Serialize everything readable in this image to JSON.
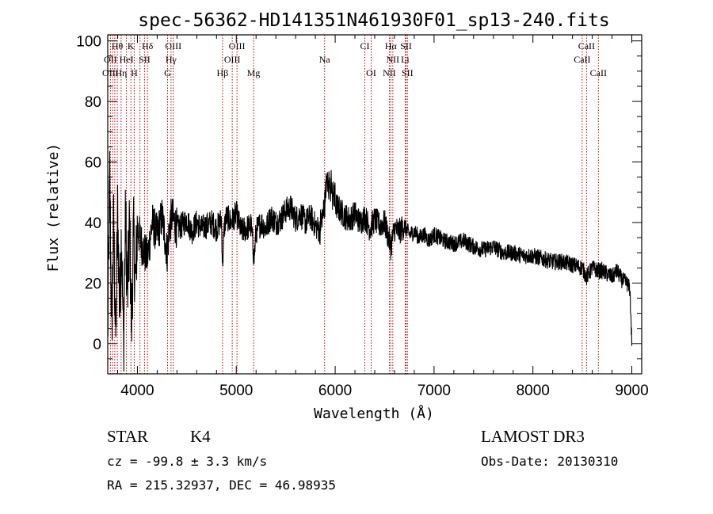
{
  "chart_data": {
    "type": "line",
    "title": "spec-56362-HD141351N461930F01_sp13-240.fits",
    "xlabel": "Wavelength (Å)",
    "ylabel": "Flux (relative)",
    "xlim": [
      3700,
      9100
    ],
    "ylim": [
      -10,
      102
    ],
    "x_ticks": [
      4000,
      5000,
      6000,
      7000,
      8000,
      9000
    ],
    "y_ticks": [
      0,
      20,
      40,
      60,
      80,
      100
    ],
    "series": [
      {
        "name": "flux",
        "x": [
          3700,
          3720,
          3740,
          3760,
          3780,
          3800,
          3820,
          3840,
          3860,
          3880,
          3900,
          3920,
          3940,
          3960,
          3980,
          4000,
          4050,
          4100,
          4150,
          4200,
          4250,
          4300,
          4330,
          4350,
          4400,
          4450,
          4500,
          4550,
          4600,
          4650,
          4700,
          4750,
          4800,
          4850,
          4861,
          4880,
          4900,
          4950,
          5000,
          5050,
          5100,
          5150,
          5180,
          5200,
          5250,
          5300,
          5350,
          5400,
          5450,
          5500,
          5550,
          5600,
          5650,
          5700,
          5750,
          5800,
          5850,
          5890,
          5920,
          5950,
          6000,
          6050,
          6100,
          6150,
          6200,
          6250,
          6300,
          6350,
          6400,
          6450,
          6500,
          6563,
          6600,
          6650,
          6700,
          6750,
          6800,
          6850,
          6900,
          6950,
          7000,
          7100,
          7200,
          7300,
          7400,
          7500,
          7600,
          7700,
          7800,
          7900,
          8000,
          8100,
          8200,
          8300,
          8400,
          8500,
          8542,
          8600,
          8662,
          8700,
          8800,
          8850,
          8900,
          8950,
          8980,
          9000
        ],
        "y": [
          2,
          55,
          5,
          40,
          0,
          45,
          10,
          38,
          -2,
          42,
          15,
          40,
          5,
          36,
          20,
          38,
          32,
          28,
          40,
          36,
          42,
          30,
          40,
          42,
          38,
          39,
          41,
          37,
          40,
          38,
          39,
          40,
          38,
          41,
          26,
          39,
          42,
          40,
          43,
          37,
          38,
          39,
          28,
          37,
          40,
          38,
          42,
          40,
          41,
          44,
          45,
          41,
          43,
          40,
          42,
          39,
          37,
          44,
          55,
          50,
          46,
          44,
          42,
          41,
          43,
          40,
          42,
          38,
          41,
          39,
          40,
          32,
          38,
          37,
          39,
          36,
          37,
          35,
          36,
          34,
          36,
          34,
          33,
          34,
          32,
          31,
          32,
          30,
          30,
          29,
          29,
          28,
          27,
          27,
          26,
          25,
          22,
          25,
          24,
          24,
          22,
          24,
          21,
          20,
          18,
          1
        ]
      }
    ],
    "spectral_lines": [
      {
        "name": "Hθ",
        "wavelength": 3797,
        "row": 0
      },
      {
        "name": "K",
        "wavelength": 3934,
        "row": 0
      },
      {
        "name": "Hδ",
        "wavelength": 4102,
        "row": 0
      },
      {
        "name": "OIII",
        "wavelength": 4363,
        "row": 0
      },
      {
        "name": "OIII",
        "wavelength": 5007,
        "row": 0
      },
      {
        "name": "CI",
        "wavelength": 6300,
        "row": 0
      },
      {
        "name": "Hα",
        "wavelength": 6563,
        "row": 0
      },
      {
        "name": "SII",
        "wavelength": 6717,
        "row": 0
      },
      {
        "name": "CaII",
        "wavelength": 8542,
        "row": 0
      },
      {
        "name": "OII",
        "wavelength": 3727,
        "row": 1
      },
      {
        "name": "HeI",
        "wavelength": 3889,
        "row": 1
      },
      {
        "name": "SII",
        "wavelength": 4072,
        "row": 1
      },
      {
        "name": "Hγ",
        "wavelength": 4340,
        "row": 1
      },
      {
        "name": "OIII",
        "wavelength": 4959,
        "row": 1
      },
      {
        "name": "Na",
        "wavelength": 5893,
        "row": 1
      },
      {
        "name": "NII",
        "wavelength": 6583,
        "row": 1
      },
      {
        "name": "Li",
        "wavelength": 6708,
        "row": 1
      },
      {
        "name": "CaII",
        "wavelength": 8498,
        "row": 1
      },
      {
        "name": "OIII",
        "wavelength": 3727,
        "row": 2
      },
      {
        "name": "Hη",
        "wavelength": 3835,
        "row": 2
      },
      {
        "name": "H",
        "wavelength": 3968,
        "row": 2
      },
      {
        "name": "G",
        "wavelength": 4305,
        "row": 2
      },
      {
        "name": "Hβ",
        "wavelength": 4861,
        "row": 2
      },
      {
        "name": "Mg",
        "wavelength": 5175,
        "row": 2
      },
      {
        "name": "OI",
        "wavelength": 6364,
        "row": 2
      },
      {
        "name": "NII",
        "wavelength": 6548,
        "row": 2
      },
      {
        "name": "SII",
        "wavelength": 6731,
        "row": 2
      },
      {
        "name": "CaII",
        "wavelength": 8662,
        "row": 2
      }
    ],
    "extra_line_markers": [
      3771,
      3750,
      3889,
      3934,
      4026,
      4072,
      4102,
      4305,
      4340,
      4363,
      4861,
      4959,
      5007,
      5175,
      5893,
      6300,
      6364,
      6548,
      6563,
      6583,
      6708,
      6717,
      6731,
      8498,
      8542,
      8662
    ]
  },
  "info": {
    "object_class": "STAR",
    "subclass": "K4",
    "survey": "LAMOST DR3",
    "redshift": "cz = -99.8 ± 3.3 km/s",
    "obs_date": "Obs-Date: 20130310",
    "coords": "RA = 215.32937, DEC =  46.98935"
  }
}
